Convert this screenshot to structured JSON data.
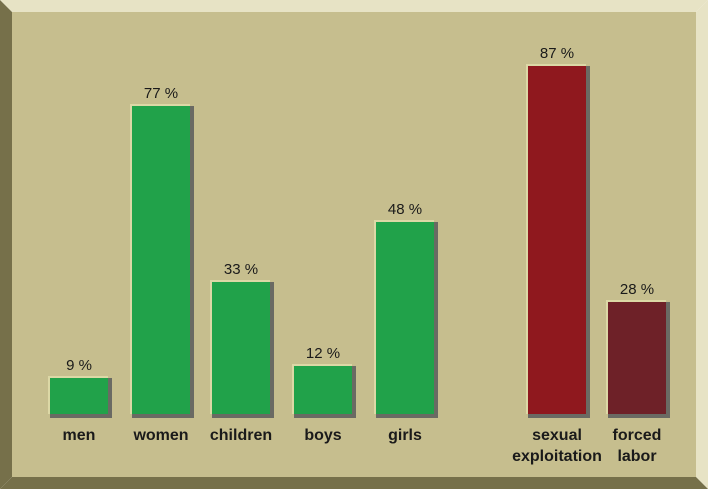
{
  "chart_data": {
    "type": "bar",
    "title": "",
    "xlabel": "",
    "ylabel": "",
    "ylim": [
      0,
      100
    ],
    "grid": false,
    "legend": "none",
    "groups": [
      {
        "categories": [
          {
            "label": [
              "men"
            ],
            "value": 9,
            "value_label": "9 %"
          },
          {
            "label": [
              "women"
            ],
            "value": 77,
            "value_label": "77 %"
          },
          {
            "label": [
              "children"
            ],
            "value": 33,
            "value_label": "33 %"
          },
          {
            "label": [
              "boys"
            ],
            "value": 12,
            "value_label": "12 %"
          },
          {
            "label": [
              "girls"
            ],
            "value": 48,
            "value_label": "48 %"
          }
        ],
        "bar_color": "#21a24a"
      },
      {
        "categories": [
          {
            "label": [
              "sexual",
              "exploitation"
            ],
            "value": 87,
            "value_label": "87 %",
            "bar_color": "#8f181e"
          },
          {
            "label": [
              "forced",
              "labor"
            ],
            "value": 28,
            "value_label": "28 %",
            "bar_color": "#6e2128"
          }
        ]
      }
    ]
  },
  "colors": {
    "panel": "#c6be8e",
    "bevel_light": "#e7e3c5",
    "bevel_dark": "#76704a",
    "bar_shadow": "#6a6a63",
    "bar_outline": "#dcd8a6",
    "text": "#1a1a1a"
  }
}
